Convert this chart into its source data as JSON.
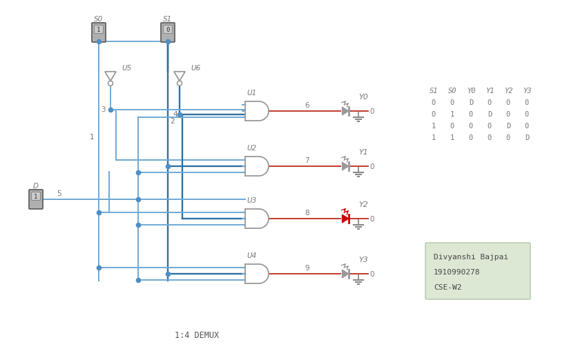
{
  "title": "1:4 DEMUX",
  "bg_color": "#ffffff",
  "wire_blue": "#6fa8d4",
  "wire_dark": "#2e6fa0",
  "wire_red": "#c0392b",
  "gate_color": "#999999",
  "node_color": "#4d8fc4",
  "text_color": "#777777",
  "led_on": "#cc0000",
  "led_off": "#999999",
  "truth_table": {
    "headers": [
      "S1",
      "S0",
      "Y0",
      "Y1",
      "Y2",
      "Y3"
    ],
    "rows": [
      [
        "0",
        "0",
        "D",
        "0",
        "0",
        "0"
      ],
      [
        "0",
        "1",
        "0",
        "D",
        "0",
        "0"
      ],
      [
        "1",
        "0",
        "0",
        "0",
        "D",
        "0"
      ],
      [
        "1",
        "1",
        "0",
        "0",
        "0",
        "D"
      ]
    ]
  }
}
